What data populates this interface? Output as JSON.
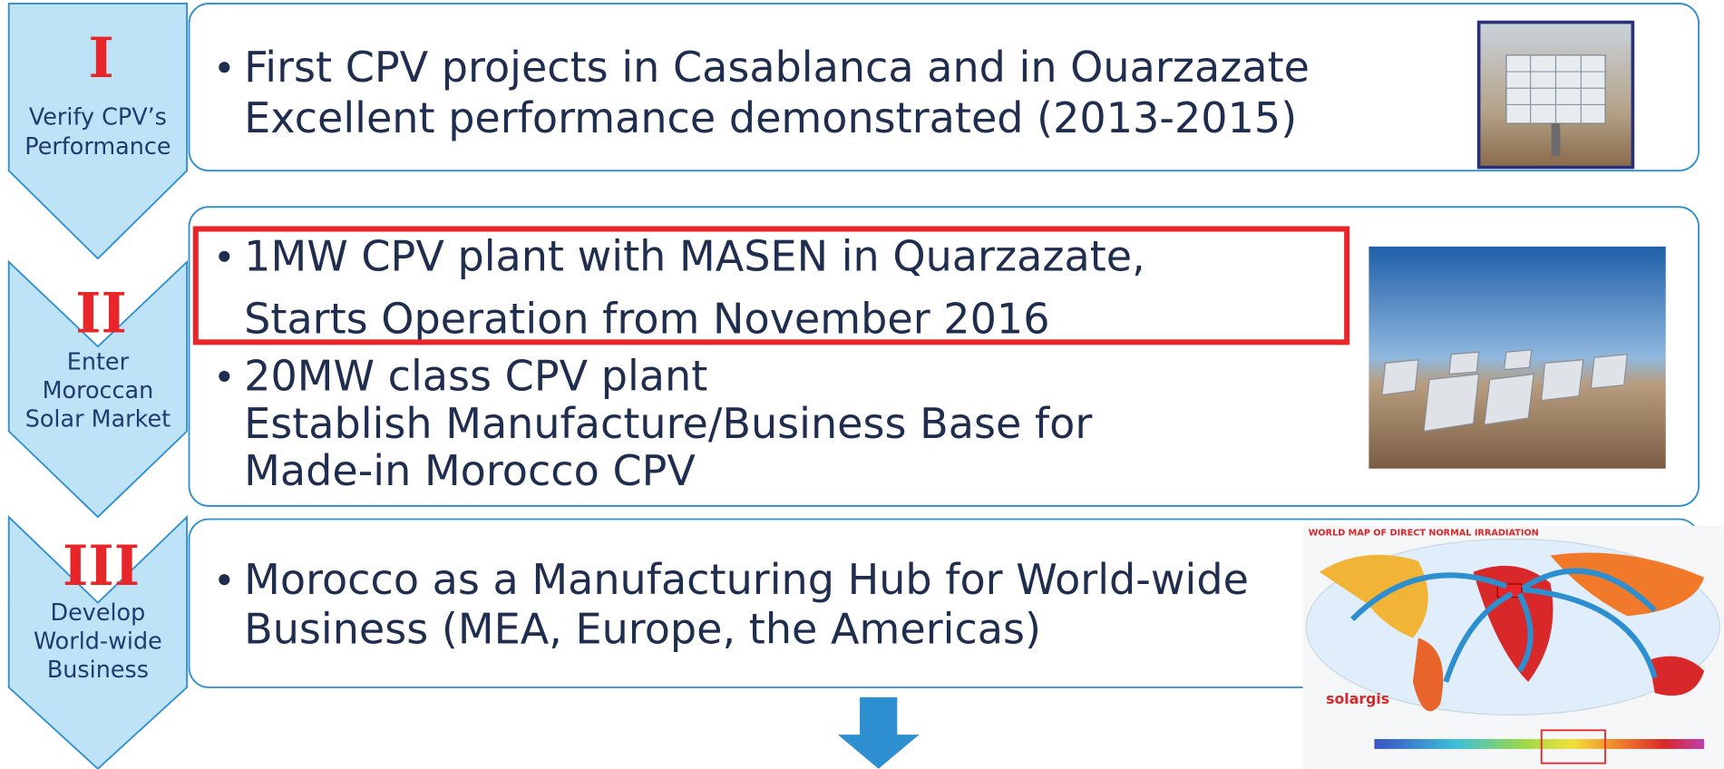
{
  "rows": [
    {
      "numeral": "I",
      "label": [
        "Verify CPV’s",
        "Performance"
      ],
      "bullets": [
        [
          "First CPV projects in Casablanca and in Ouarzazate",
          "Excellent performance demonstrated (2013-2015)"
        ]
      ]
    },
    {
      "numeral": "II",
      "label": [
        "Enter",
        "Moroccan",
        "Solar Market"
      ],
      "bullets": [
        [
          "1MW CPV plant with MASEN in Quarzazate,",
          "Starts Operation from November 2016"
        ],
        [
          "20MW class CPV plant",
          "Establish Manufacture/Business Base for",
          "Made-in Morocco CPV"
        ]
      ]
    },
    {
      "numeral": "III",
      "label": [
        "Develop",
        "World-wide",
        "Business"
      ],
      "bullets": [
        [
          "Morocco as a Manufacturing Hub for World-wide",
          "Business (MEA, Europe, the Americas)"
        ]
      ]
    }
  ],
  "map": {
    "title": "WORLD MAP OF DIRECT NORMAL IRRADIATION",
    "brand": "solargis"
  }
}
